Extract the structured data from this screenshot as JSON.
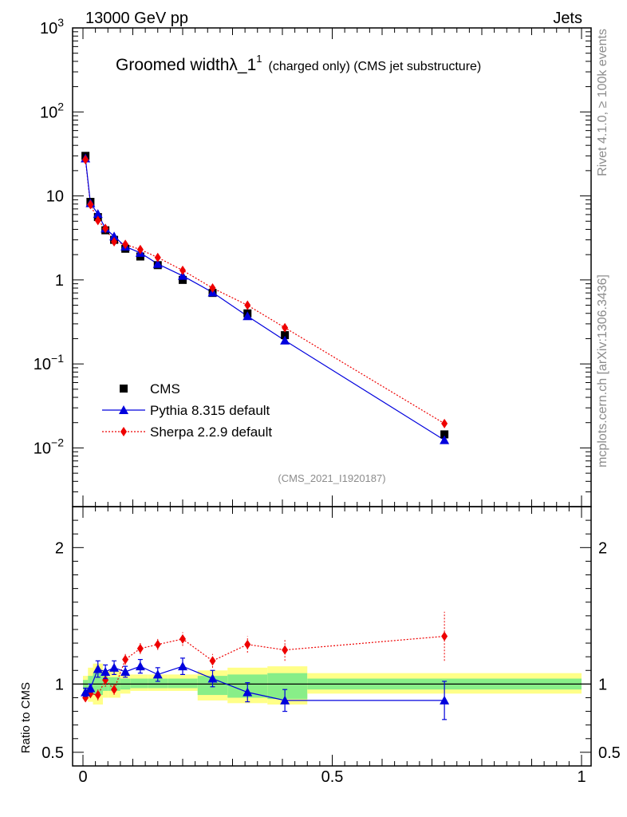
{
  "header": {
    "left": "13000 GeV pp",
    "right": "Jets"
  },
  "side": {
    "upper": "Rivet 4.1.0, ≥ 100k events",
    "lower": "mcplots.cern.ch [arXiv:1306.3436]"
  },
  "chart_data": {
    "type": "line",
    "title_main": "Groomed widthλ_1",
    "title_sup": "1",
    "title_sub": "(charged only) (CMS jet substructure)",
    "analysis_tag": "(CMS_2021_I1920187)",
    "ylabel_ratio": "Ratio to CMS",
    "xlim": [
      0,
      1
    ],
    "ylim_main_log": [
      0.002,
      1000
    ],
    "ylim_ratio": [
      0.4,
      2.3
    ],
    "x_ticks": [
      {
        "v": 0,
        "label": "0"
      },
      {
        "v": 0.5,
        "label": "0.5"
      },
      {
        "v": 1,
        "label": "1"
      }
    ],
    "y_ticks_main": [
      {
        "v": 1000,
        "base": "10",
        "exp": "3"
      },
      {
        "v": 100,
        "base": "10",
        "exp": "2"
      },
      {
        "v": 10,
        "base": "10",
        "exp": ""
      },
      {
        "v": 1,
        "base": "1",
        "exp": ""
      },
      {
        "v": 0.1,
        "base": "10",
        "exp": "−1"
      },
      {
        "v": 0.01,
        "base": "10",
        "exp": "−2"
      }
    ],
    "y_ticks_ratio": [
      {
        "v": 0.5,
        "label": "0.5"
      },
      {
        "v": 1,
        "label": "1"
      },
      {
        "v": 2,
        "label": "2"
      }
    ],
    "legend": [
      {
        "label": "CMS",
        "style": "data"
      },
      {
        "label": "Pythia 8.315 default",
        "style": "pythia"
      },
      {
        "label": "Sherpa 2.2.9 default",
        "style": "sherpa"
      }
    ],
    "colors": {
      "data": "#000000",
      "pythia": "#0000dd",
      "sherpa": "#ee0000",
      "band_inner": "#88ee88",
      "band_outer": "#ffff88"
    },
    "x": [
      0.005,
      0.015,
      0.03,
      0.045,
      0.0625,
      0.085,
      0.115,
      0.15,
      0.2,
      0.26,
      0.33,
      0.405,
      0.725
    ],
    "series": [
      {
        "name": "CMS",
        "values": [
          30,
          8.5,
          5.6,
          3.9,
          3.0,
          2.35,
          1.9,
          1.5,
          1.0,
          0.7,
          0.4,
          0.22,
          0.0145
        ]
      },
      {
        "name": "Pythia 8.315 default",
        "values": [
          28,
          8.2,
          6.1,
          4.1,
          3.3,
          2.5,
          2.1,
          1.55,
          1.12,
          0.71,
          0.37,
          0.19,
          0.0124
        ],
        "ratio": [
          0.94,
          0.97,
          1.11,
          1.09,
          1.12,
          1.09,
          1.13,
          1.07,
          1.13,
          1.04,
          0.94,
          0.88,
          0.88
        ],
        "ratio_err": [
          0.03,
          0.03,
          0.06,
          0.05,
          0.05,
          0.04,
          0.05,
          0.05,
          0.06,
          0.06,
          0.07,
          0.08,
          0.14
        ]
      },
      {
        "name": "Sherpa 2.2.9 default",
        "values": [
          27,
          7.9,
          5.1,
          4.1,
          2.85,
          2.65,
          2.3,
          1.85,
          1.3,
          0.8,
          0.5,
          0.27,
          0.0195
        ],
        "ratio": [
          0.9,
          0.93,
          0.92,
          1.03,
          0.96,
          1.18,
          1.26,
          1.29,
          1.33,
          1.17,
          1.29,
          1.25,
          1.35
        ],
        "ratio_err": [
          0.03,
          0.03,
          0.04,
          0.05,
          0.04,
          0.04,
          0.04,
          0.04,
          0.05,
          0.05,
          0.06,
          0.08,
          0.18
        ]
      }
    ],
    "bands": [
      {
        "x0": 0.0,
        "x1": 0.01,
        "inner": [
          0.96,
          1.03
        ],
        "outer": [
          0.93,
          1.06
        ]
      },
      {
        "x0": 0.01,
        "x1": 0.02,
        "inner": [
          0.93,
          1.06
        ],
        "outer": [
          0.87,
          1.12
        ]
      },
      {
        "x0": 0.02,
        "x1": 0.04,
        "inner": [
          0.92,
          1.08
        ],
        "outer": [
          0.85,
          1.15
        ]
      },
      {
        "x0": 0.04,
        "x1": 0.05,
        "inner": [
          0.95,
          1.06
        ],
        "outer": [
          0.9,
          1.1
        ]
      },
      {
        "x0": 0.05,
        "x1": 0.075,
        "inner": [
          0.95,
          1.05
        ],
        "outer": [
          0.9,
          1.1
        ]
      },
      {
        "x0": 0.075,
        "x1": 0.095,
        "inner": [
          0.96,
          1.04
        ],
        "outer": [
          0.93,
          1.07
        ]
      },
      {
        "x0": 0.095,
        "x1": 0.13,
        "inner": [
          0.97,
          1.04
        ],
        "outer": [
          0.95,
          1.07
        ]
      },
      {
        "x0": 0.13,
        "x1": 0.17,
        "inner": [
          0.97,
          1.04
        ],
        "outer": [
          0.95,
          1.07
        ]
      },
      {
        "x0": 0.17,
        "x1": 0.23,
        "inner": [
          0.97,
          1.04
        ],
        "outer": [
          0.95,
          1.07
        ]
      },
      {
        "x0": 0.23,
        "x1": 0.29,
        "inner": [
          0.92,
          1.06
        ],
        "outer": [
          0.88,
          1.1
        ]
      },
      {
        "x0": 0.29,
        "x1": 0.37,
        "inner": [
          0.9,
          1.07
        ],
        "outer": [
          0.86,
          1.12
        ]
      },
      {
        "x0": 0.37,
        "x1": 0.45,
        "inner": [
          0.89,
          1.08
        ],
        "outer": [
          0.85,
          1.13
        ]
      },
      {
        "x0": 0.45,
        "x1": 1.0,
        "inner": [
          0.96,
          1.04
        ],
        "outer": [
          0.93,
          1.08
        ]
      }
    ]
  }
}
